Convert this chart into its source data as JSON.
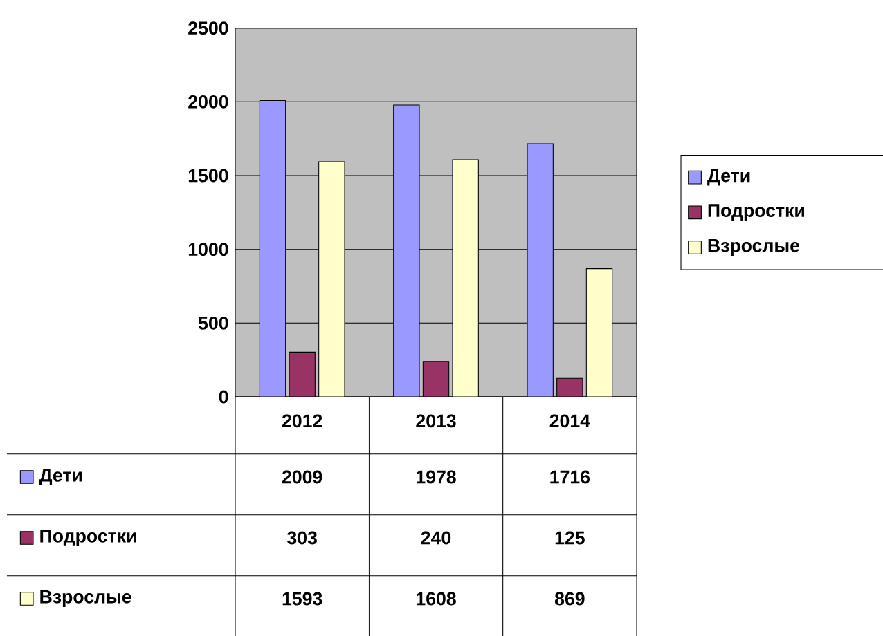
{
  "chart_data": {
    "type": "bar",
    "categories": [
      "2012",
      "2013",
      "2014"
    ],
    "series": [
      {
        "name": "Дети",
        "color": "#9999ff",
        "values": [
          2009,
          1978,
          1716
        ]
      },
      {
        "name": "Подростки",
        "color": "#993366",
        "values": [
          303,
          240,
          125
        ]
      },
      {
        "name": "Взрослые",
        "color": "#ffffcc",
        "values": [
          1593,
          1608,
          869
        ]
      }
    ],
    "ylim": [
      0,
      2500
    ],
    "yticks": [
      0,
      500,
      1000,
      1500,
      2000,
      2500
    ],
    "grid": "y",
    "legend": "right",
    "data_labels": true
  }
}
